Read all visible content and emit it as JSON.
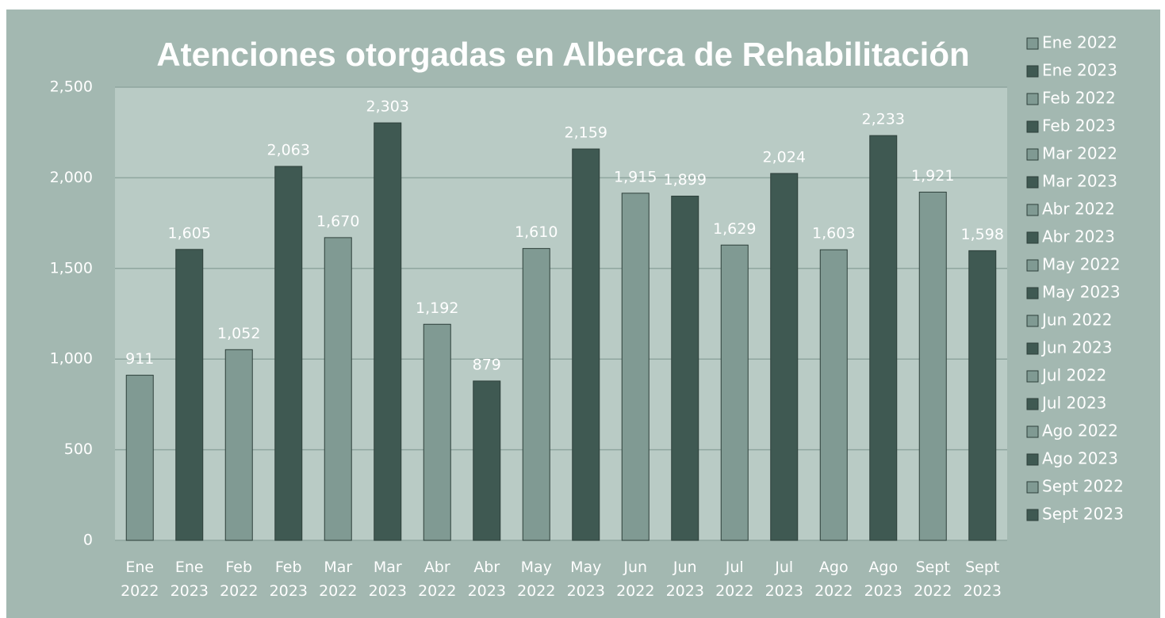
{
  "chart_data": {
    "type": "bar",
    "title": "Atenciones otorgadas en Alberca de Rehabilitación",
    "categories": [
      "Ene 2022",
      "Ene 2023",
      "Feb 2022",
      "Feb 2023",
      "Mar 2022",
      "Mar 2023",
      "Abr 2022",
      "Abr 2023",
      "May 2022",
      "May 2023",
      "Jun 2022",
      "Jun 2023",
      "Jul 2022",
      "Jul 2023",
      "Ago 2022",
      "Ago 2023",
      "Sept 2022",
      "Sept 2023"
    ],
    "values": [
      911,
      1605,
      1052,
      2063,
      1670,
      2303,
      1192,
      879,
      1610,
      2159,
      1915,
      1899,
      1629,
      2024,
      1603,
      2233,
      1921,
      1598
    ],
    "value_labels": [
      "911",
      "1,605",
      "1,052",
      "2,063",
      "1,670",
      "2,303",
      "1,192",
      "879",
      "1,610",
      "2,159",
      "1,915",
      "1,899",
      "1,629",
      "2,024",
      "1,603",
      "2,233",
      "1,921",
      "1,598"
    ],
    "colors": [
      "#809a93",
      "#3f5952",
      "#809a93",
      "#3f5952",
      "#809a93",
      "#3f5952",
      "#809a93",
      "#3f5952",
      "#809a93",
      "#3f5952",
      "#809a93",
      "#3f5952",
      "#809a93",
      "#3f5952",
      "#809a93",
      "#3f5952",
      "#809a93",
      "#3f5952"
    ],
    "ylim": [
      0,
      2500
    ],
    "yticks": [
      0,
      500,
      {
        "value": 1000,
        "label": "1,000"
      },
      {
        "value": 1500,
        "label": "1,500"
      },
      {
        "value": 2000,
        "label": "2,000"
      },
      {
        "value": 2500,
        "label": "2,500"
      }
    ],
    "grid": true,
    "legend": "right"
  }
}
